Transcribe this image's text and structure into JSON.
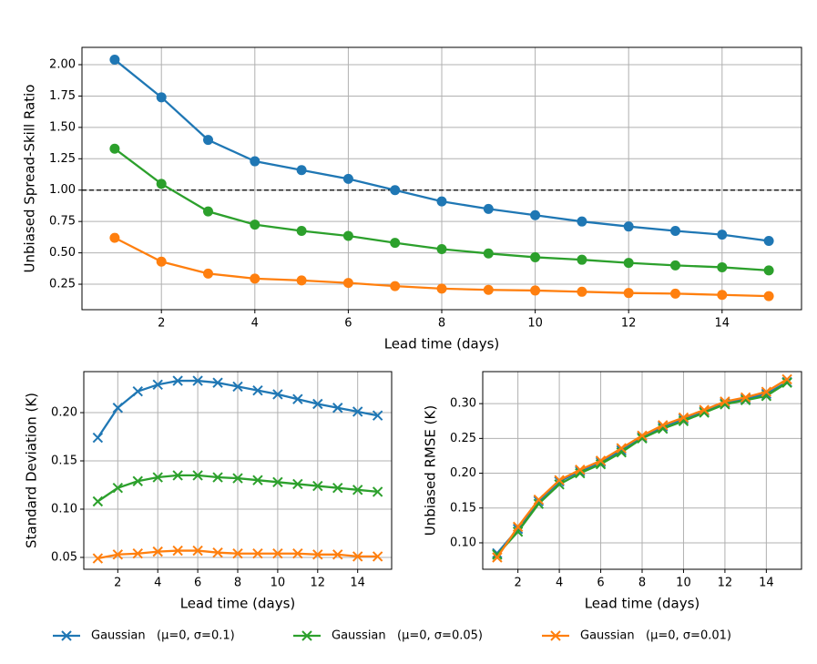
{
  "chart_data": [
    {
      "type": "line",
      "marker": "o",
      "grid": true,
      "hline": 1.0,
      "xlabel": "Lead time (days)",
      "ylabel": "Unbiased Spread-Skill Ratio",
      "x": [
        1,
        2,
        3,
        4,
        5,
        6,
        7,
        8,
        9,
        10,
        11,
        12,
        13,
        14,
        15
      ],
      "xlim": [
        0.3,
        15.7
      ],
      "xticks": [
        2,
        4,
        6,
        8,
        10,
        12,
        14
      ],
      "ylim": [
        0.047,
        2.138
      ],
      "yticks": [
        0.25,
        {
          "value": 0.5,
          "label": "0.50"
        },
        0.75,
        {
          "value": 1.0,
          "label": "1.00"
        },
        1.25,
        {
          "value": 1.5,
          "label": "1.50"
        },
        1.75,
        {
          "value": 2.0,
          "label": "2.00"
        }
      ],
      "series": [
        {
          "name": "Gaussian   (μ=0, σ=0.1)",
          "color": "#1f77b4",
          "values": [
            2.04,
            1.74,
            1.4,
            1.23,
            1.16,
            1.09,
            1.0,
            0.91,
            0.85,
            0.8,
            0.75,
            0.71,
            0.675,
            0.645,
            0.595
          ]
        },
        {
          "name": "Gaussian   (μ=0, σ=0.05)",
          "color": "#2ca02c",
          "values": [
            1.33,
            1.05,
            0.83,
            0.725,
            0.675,
            0.635,
            0.58,
            0.53,
            0.495,
            0.465,
            0.445,
            0.42,
            0.4,
            0.385,
            0.36
          ]
        },
        {
          "name": "Gaussian   (μ=0, σ=0.01)",
          "color": "#ff7f0e",
          "values": [
            0.62,
            0.43,
            0.335,
            0.295,
            0.28,
            0.26,
            0.235,
            0.215,
            0.205,
            0.2,
            0.19,
            0.18,
            0.175,
            0.165,
            0.155
          ]
        }
      ]
    },
    {
      "type": "line",
      "marker": "x",
      "grid": true,
      "xlabel": "Lead time (days)",
      "ylabel": "Standard Deviation (K)",
      "x": [
        1,
        2,
        3,
        4,
        5,
        6,
        7,
        8,
        9,
        10,
        11,
        12,
        13,
        14,
        15
      ],
      "xlim": [
        0.3,
        15.7
      ],
      "xticks": [
        2,
        4,
        6,
        8,
        10,
        12,
        14
      ],
      "ylim": [
        0.0377,
        0.2425
      ],
      "yticks": [
        0.05,
        {
          "value": 0.1,
          "label": "0.10"
        },
        0.15,
        {
          "value": 0.2,
          "label": "0.20"
        }
      ],
      "series": [
        {
          "color": "#1f77b4",
          "values": [
            0.174,
            0.205,
            0.222,
            0.229,
            0.233,
            0.233,
            0.231,
            0.227,
            0.223,
            0.219,
            0.214,
            0.209,
            0.205,
            0.201,
            0.197
          ]
        },
        {
          "color": "#2ca02c",
          "values": [
            0.108,
            0.122,
            0.129,
            0.133,
            0.135,
            0.135,
            0.133,
            0.132,
            0.13,
            0.128,
            0.126,
            0.124,
            0.122,
            0.12,
            0.118
          ]
        },
        {
          "color": "#ff7f0e",
          "values": [
            0.049,
            0.053,
            0.054,
            0.056,
            0.057,
            0.057,
            0.055,
            0.054,
            0.054,
            0.054,
            0.054,
            0.053,
            0.053,
            0.051,
            0.051
          ]
        }
      ]
    },
    {
      "type": "line",
      "marker": "x",
      "grid": true,
      "xlabel": "Lead time (days)",
      "ylabel": "Unbiased RMSE (K)",
      "x": [
        1,
        2,
        3,
        4,
        5,
        6,
        7,
        8,
        9,
        10,
        11,
        12,
        13,
        14,
        15
      ],
      "xlim": [
        0.3,
        15.7
      ],
      "xticks": [
        2,
        4,
        6,
        8,
        10,
        12,
        14
      ],
      "ylim": [
        0.062,
        0.346
      ],
      "yticks": [
        {
          "value": 0.1,
          "label": "0.10"
        },
        0.15,
        {
          "value": 0.2,
          "label": "0.20"
        },
        0.25,
        {
          "value": 0.3,
          "label": "0.30"
        }
      ],
      "series": [
        {
          "color": "#1f77b4",
          "values": [
            0.085,
            0.12,
            0.16,
            0.188,
            0.203,
            0.216,
            0.233,
            0.252,
            0.267,
            0.278,
            0.289,
            0.301,
            0.307,
            0.314,
            0.331
          ]
        },
        {
          "color": "#2ca02c",
          "values": [
            0.083,
            0.116,
            0.156,
            0.184,
            0.2,
            0.213,
            0.23,
            0.25,
            0.264,
            0.275,
            0.287,
            0.299,
            0.305,
            0.311,
            0.33
          ]
        },
        {
          "color": "#ff7f0e",
          "values": [
            0.079,
            0.123,
            0.162,
            0.19,
            0.205,
            0.218,
            0.236,
            0.254,
            0.269,
            0.28,
            0.291,
            0.303,
            0.309,
            0.317,
            0.335
          ]
        }
      ]
    }
  ]
}
